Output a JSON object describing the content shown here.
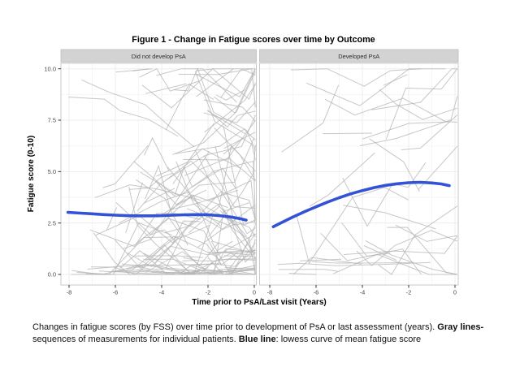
{
  "figure": {
    "title": "Figure 1 - Change in Fatigue scores over time by Outcome",
    "x_axis_title": "Time prior to PsA/Last visit (Years)",
    "y_axis_title": "Fatigue score (0-10)"
  },
  "caption": {
    "line1_normal": "Changes in fatigue scores (by FSS) over time prior to development of PsA or last assessment (years). ",
    "line1_bold": "Gray lines-",
    "line2_normal_a": "sequences of measurements for individual patients. ",
    "line2_bold": "Blue line",
    "line2_normal_b": ": lowess curve of mean fatigue score"
  },
  "chart_data": {
    "type": "line",
    "title": "Figure 1 - Change in Fatigue scores over time by Outcome",
    "xlabel": "Time prior to PsA/Last visit (Years)",
    "ylabel": "Fatigue score (0-10)",
    "xlim": [
      -8.4,
      0.15
    ],
    "ylim": [
      -0.5,
      10.2
    ],
    "x_ticks": [
      -8,
      -6,
      -4,
      -2,
      0
    ],
    "x_tick_labels": [
      "-8",
      "-6",
      "-4",
      "-2",
      "0"
    ],
    "y_ticks": [
      0,
      2.5,
      5,
      7.5,
      10
    ],
    "y_tick_labels": [
      "0.0",
      "2.5",
      "5.0",
      "7.5",
      "10.0"
    ],
    "grid": "faint major and minor gridlines",
    "legend": "none",
    "panels": [
      {
        "label": "Did not develop PsA",
        "series": [
          {
            "name": "lowess curve of mean fatigue score",
            "points": [
              [
                -8.05,
                3.02
              ],
              [
                -7.5,
                2.98
              ],
              [
                -7.0,
                2.95
              ],
              [
                -6.5,
                2.91
              ],
              [
                -6.0,
                2.88
              ],
              [
                -5.5,
                2.86
              ],
              [
                -5.0,
                2.85
              ],
              [
                -4.5,
                2.85
              ],
              [
                -4.0,
                2.86
              ],
              [
                -3.5,
                2.88
              ],
              [
                -3.0,
                2.9
              ],
              [
                -2.5,
                2.91
              ],
              [
                -2.0,
                2.9
              ],
              [
                -1.5,
                2.86
              ],
              [
                -1.0,
                2.79
              ],
              [
                -0.6,
                2.71
              ],
              [
                -0.35,
                2.64
              ]
            ]
          }
        ],
        "gray_lines": {
          "description": "individual patient fatigue trajectories",
          "seed": 7,
          "count": 125,
          "flat_prob": 0.13,
          "max_extra_pts": 5,
          "x_bias": 0.62,
          "y_bias": 1.9,
          "step_min": 0.35,
          "step_var": 1.6,
          "jump": 3.0,
          "xmin": -8.3,
          "xmax_start": -1.2,
          "xmax_end": 0.05
        }
      },
      {
        "label": "Developed PsA",
        "series": [
          {
            "name": "lowess curve of mean fatigue score",
            "points": [
              [
                -7.85,
                2.32
              ],
              [
                -7.4,
                2.57
              ],
              [
                -7.0,
                2.79
              ],
              [
                -6.5,
                3.05
              ],
              [
                -6.0,
                3.29
              ],
              [
                -5.5,
                3.52
              ],
              [
                -5.0,
                3.73
              ],
              [
                -4.5,
                3.92
              ],
              [
                -4.0,
                4.08
              ],
              [
                -3.5,
                4.22
              ],
              [
                -3.0,
                4.33
              ],
              [
                -2.5,
                4.41
              ],
              [
                -2.0,
                4.46
              ],
              [
                -1.5,
                4.48
              ],
              [
                -1.0,
                4.45
              ],
              [
                -0.6,
                4.4
              ],
              [
                -0.25,
                4.32
              ]
            ]
          }
        ],
        "gray_lines": {
          "description": "individual patient fatigue trajectories",
          "seed": 42,
          "count": 34,
          "flat_prob": 0.1,
          "max_extra_pts": 4,
          "x_bias": 0.8,
          "y_bias": 1.25,
          "step_min": 0.5,
          "step_var": 1.9,
          "jump": 3.2,
          "xmin": -8.35,
          "xmax_start": -1.5,
          "xmax_end": 0.1
        }
      }
    ],
    "colors": {
      "lowess_blue": "#3353d6",
      "gray_line": "#b4b4b4",
      "strip_bg": "#d3d3d3",
      "strip_border": "#bdbdbd",
      "panel_border": "#c9c9c9",
      "grid_major": "#ededed",
      "grid_minor": "#f6f6f6",
      "tick_mark": "#333333"
    }
  }
}
